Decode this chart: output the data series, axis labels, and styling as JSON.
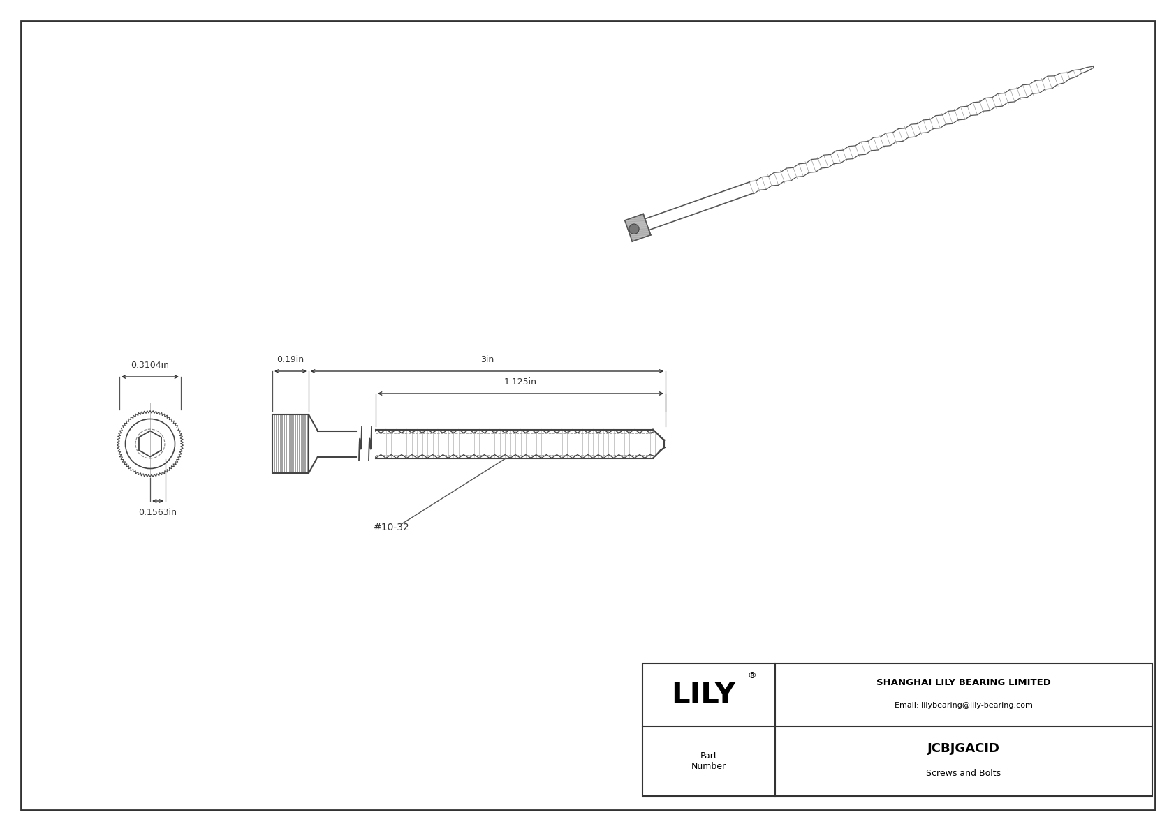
{
  "bg_color": "#ffffff",
  "border_color": "#333333",
  "line_color": "#444444",
  "dim_color": "#333333",
  "title_company": "SHANGHAI LILY BEARING LIMITED",
  "title_email": "Email: lilybearing@lily-bearing.com",
  "part_number": "JCBJGACID",
  "part_category": "Screws and Bolts",
  "dim_head_width": "0.3104in",
  "dim_head_height": "0.19in",
  "dim_total_length": "3in",
  "dim_thread_length": "1.125in",
  "dim_shank_dia": "0.1563in",
  "thread_label": "#10-32",
  "fig_w": 16.84,
  "fig_h": 11.91
}
